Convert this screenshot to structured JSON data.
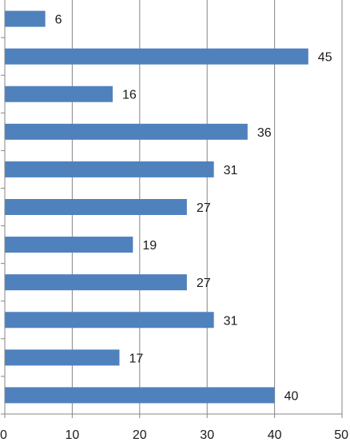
{
  "chart_data": {
    "type": "bar",
    "orientation": "horizontal",
    "values": [
      6,
      45,
      16,
      36,
      31,
      27,
      19,
      27,
      31,
      17,
      40
    ],
    "data_labels": [
      "6",
      "45",
      "16",
      "36",
      "31",
      "27",
      "19",
      "27",
      "31",
      "17",
      "40"
    ],
    "xlim": [
      0,
      50
    ],
    "x_ticks": [
      0,
      10,
      20,
      30,
      40,
      50
    ],
    "x_tick_labels": [
      "0",
      "10",
      "20",
      "30",
      "40",
      "50"
    ],
    "grid": "vertical",
    "legend": "none",
    "bar_color": "#4f81bd",
    "grid_color": "#868686",
    "axis_color": "#868686"
  }
}
